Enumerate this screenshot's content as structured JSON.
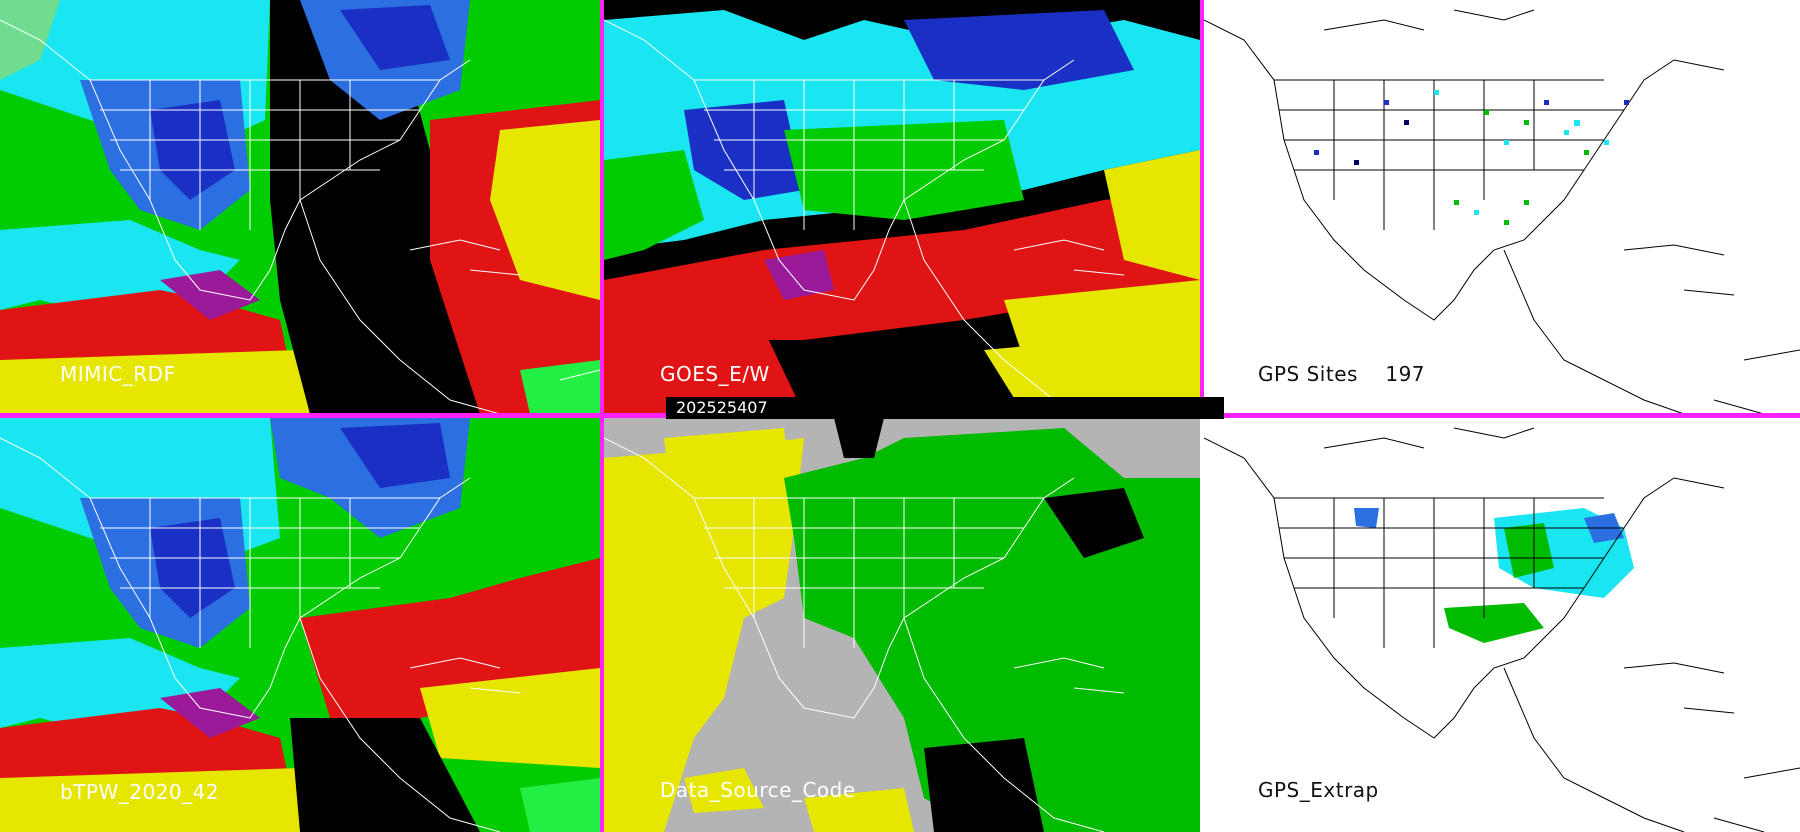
{
  "panels": [
    {
      "label": "MIMIC_RDF"
    },
    {
      "label": "GOES_E/W"
    },
    {
      "label": "GPS Sites    197"
    },
    {
      "label": "bTPW_2020_42"
    },
    {
      "label": "Data_Source_Code"
    },
    {
      "label": "GPS_Extrap"
    }
  ],
  "timestamp": "202525407",
  "colors": {
    "divider": "#ff22ff",
    "outline_on_dark": "#ffffff",
    "outline_on_light": "#000000",
    "tpw_scale": [
      "#000066",
      "#1a2fc4",
      "#2c6fe0",
      "#19e6f0",
      "#6fdc90",
      "#00cc00",
      "#22ee44",
      "#e01414",
      "#9a1a9a",
      "#e6e600"
    ],
    "data_source": [
      "#e6e600",
      "#00bb00",
      "#b4b4b4",
      "#000000"
    ]
  }
}
